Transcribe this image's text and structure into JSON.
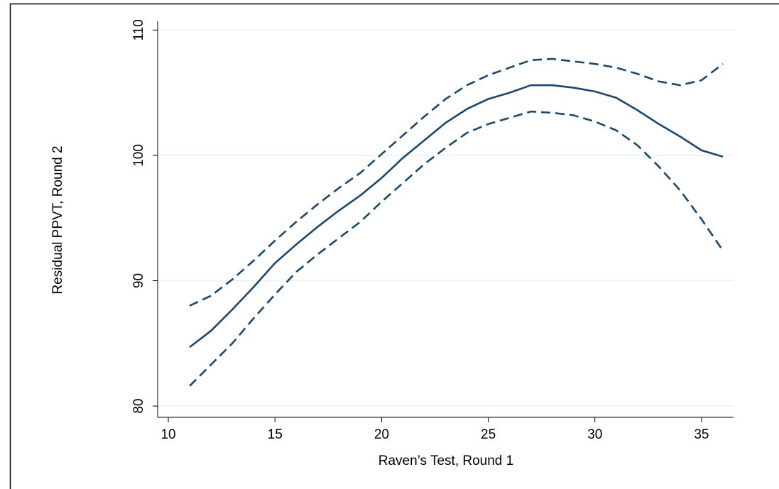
{
  "chart_data": {
    "type": "line",
    "x_label": "Raven’s Test, Round 1",
    "y_label": "Residual PPVT, Round 2",
    "x": [
      11,
      12,
      13,
      14,
      15,
      16,
      17,
      18,
      19,
      20,
      21,
      22,
      23,
      24,
      25,
      26,
      27,
      28,
      29,
      30,
      31,
      32,
      33,
      34,
      35,
      36
    ],
    "series": [
      {
        "color": "#1a476f",
        "dashed": false,
        "values": [
          84.7,
          86.0,
          87.7,
          89.5,
          91.4,
          92.9,
          94.3,
          95.6,
          96.8,
          98.2,
          99.8,
          101.2,
          102.6,
          103.7,
          104.5,
          105.0,
          105.6,
          105.6,
          105.4,
          105.1,
          104.6,
          103.6,
          102.5,
          101.5,
          100.4,
          99.9
        ]
      },
      {
        "color": "#1a476f",
        "dashed": true,
        "values": [
          88.0,
          88.8,
          90.1,
          91.6,
          93.2,
          94.7,
          96.1,
          97.4,
          98.6,
          100.1,
          101.6,
          103.1,
          104.5,
          105.6,
          106.4,
          107.0,
          107.6,
          107.7,
          107.5,
          107.3,
          107.0,
          106.5,
          105.9,
          105.6,
          106.0,
          107.3
        ]
      },
      {
        "color": "#1a476f",
        "dashed": true,
        "values": [
          81.6,
          83.3,
          85.0,
          87.0,
          88.9,
          90.7,
          92.1,
          93.4,
          94.7,
          96.3,
          97.8,
          99.3,
          100.6,
          101.8,
          102.5,
          103.0,
          103.5,
          103.4,
          103.2,
          102.7,
          102.0,
          100.8,
          99.1,
          97.2,
          94.9,
          92.4
        ]
      }
    ],
    "xlim": [
      9.5,
      36.5
    ],
    "xticks": [
      10,
      15,
      20,
      25,
      30,
      35
    ],
    "ylim": [
      79.1,
      110.7
    ],
    "yticks": [
      80,
      90,
      100,
      110
    ],
    "grid": true,
    "grid_color": "#eaf2f3"
  }
}
